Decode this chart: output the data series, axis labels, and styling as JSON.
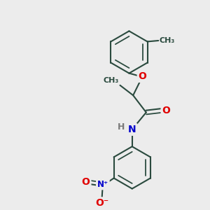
{
  "bg_color": "#ececec",
  "bond_color": "#2a4a3e",
  "bond_width": 1.5,
  "atom_colors": {
    "O": "#e00000",
    "N": "#0000cc",
    "C": "#2a4a3e",
    "H": "#7a7a7a"
  },
  "font_size": 9,
  "fig_size": [
    3.0,
    3.0
  ],
  "dpi": 100,
  "xlim": [
    0,
    10
  ],
  "ylim": [
    0,
    10
  ]
}
